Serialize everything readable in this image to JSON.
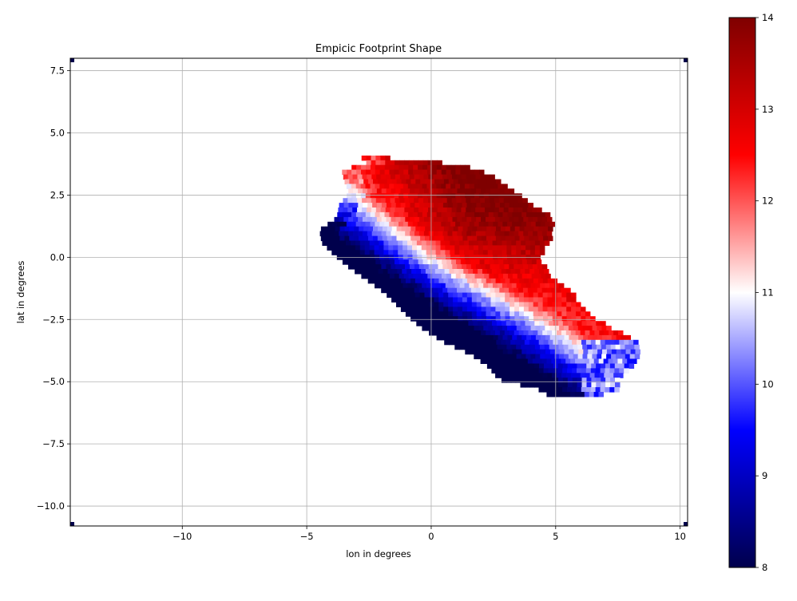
{
  "chart_data": {
    "type": "heatmap",
    "title": "Empicic Footprint Shape",
    "xlabel": "lon in degrees",
    "ylabel": "lat in degrees",
    "xlim": [
      -14.5,
      10.3
    ],
    "ylim": [
      -10.8,
      8.0
    ],
    "xticks": [
      -10,
      -5,
      0,
      5,
      10
    ],
    "xtick_labels": [
      "−10",
      "−5",
      "0",
      "5",
      "10"
    ],
    "yticks": [
      -10.0,
      -7.5,
      -5.0,
      -2.5,
      0.0,
      2.5,
      5.0,
      7.5
    ],
    "ytick_labels": [
      "−10.0",
      "−7.5",
      "−5.0",
      "−2.5",
      "0.0",
      "2.5",
      "5.0",
      "7.5"
    ],
    "grid": true,
    "colormap": "seismic",
    "colormap_stops": [
      "#00004c",
      "#0000ff",
      "#ffffff",
      "#ff0000",
      "#7f0000"
    ],
    "colorbar": {
      "min": 8,
      "max": 14,
      "ticks": [
        8,
        9,
        10,
        11,
        12,
        13,
        14
      ],
      "tick_labels": [
        "8",
        "9",
        "10",
        "11",
        "12",
        "13",
        "14"
      ]
    },
    "cell_size_deg": 0.19,
    "footprint": {
      "description_rows": [
        {
          "lat": 3.9,
          "lon_min": -2.8,
          "lon_max": -1.8
        },
        {
          "lat": 3.7,
          "lon_min": -2.6,
          "lon_max": 0.4
        },
        {
          "lat": 3.4,
          "lon_min": -3.6,
          "lon_max": 2.0
        },
        {
          "lat": 3.0,
          "lon_min": -3.5,
          "lon_max": 2.6
        },
        {
          "lat": 2.5,
          "lon_min": -3.3,
          "lon_max": 3.3
        },
        {
          "lat": 2.0,
          "lon_min": -3.7,
          "lon_max": 4.0
        },
        {
          "lat": 1.5,
          "lon_min": -3.8,
          "lon_max": 4.8
        },
        {
          "lat": 1.0,
          "lon_min": -4.5,
          "lon_max": 4.8
        },
        {
          "lat": 0.5,
          "lon_min": -4.4,
          "lon_max": 4.7
        },
        {
          "lat": 0.0,
          "lon_min": -3.9,
          "lon_max": 4.3
        },
        {
          "lat": -0.5,
          "lon_min": -3.3,
          "lon_max": 4.5
        },
        {
          "lat": -1.0,
          "lon_min": -2.6,
          "lon_max": 4.9
        },
        {
          "lat": -1.5,
          "lon_min": -1.9,
          "lon_max": 5.6
        },
        {
          "lat": -2.0,
          "lon_min": -1.4,
          "lon_max": 5.9
        },
        {
          "lat": -2.5,
          "lon_min": -0.9,
          "lon_max": 6.4
        },
        {
          "lat": -3.0,
          "lon_min": -0.3,
          "lon_max": 7.3
        },
        {
          "lat": -3.5,
          "lon_min": 0.5,
          "lon_max": 8.2
        },
        {
          "lat": -4.0,
          "lon_min": 1.6,
          "lon_max": 8.3
        },
        {
          "lat": -4.5,
          "lon_min": 2.3,
          "lon_max": 8.0
        },
        {
          "lat": -5.0,
          "lon_min": 2.7,
          "lon_max": 7.5
        },
        {
          "lat": -5.4,
          "lon_min": 4.3,
          "lon_max": 7.4
        },
        {
          "lat": -5.7,
          "lon_min": 4.8,
          "lon_max": 6.6
        }
      ],
      "value_model": "value decreases toward lower-left edge (blue, 8-10) and is highest (13-14) near center-upper region"
    }
  }
}
